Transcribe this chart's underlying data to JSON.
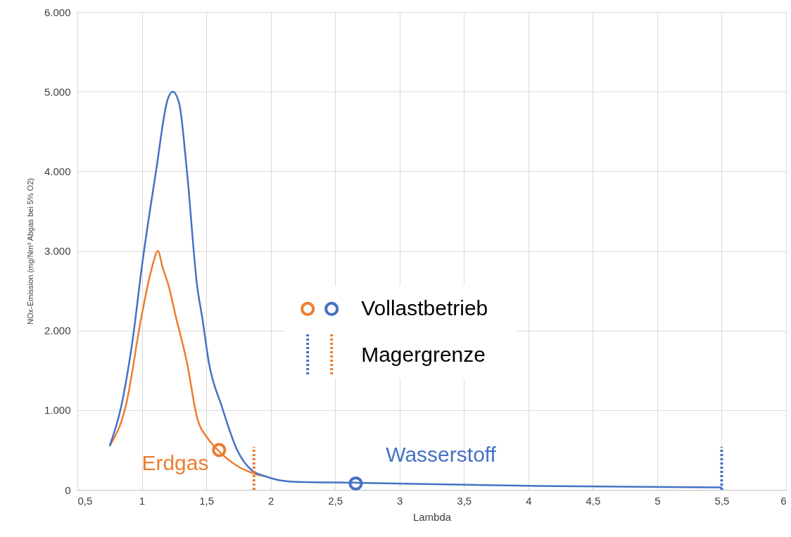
{
  "chart_data": {
    "type": "line",
    "xlabel": "Lambda",
    "ylabel": "NOx-Emission (mg/Nm³ Abgas bei 5% O2)",
    "xlim": [
      0.5,
      6
    ],
    "xticks": [
      {
        "value": 0.5,
        "label": "0,5"
      },
      1,
      {
        "value": 1.5,
        "label": "1,5"
      },
      2,
      {
        "value": 2.5,
        "label": "2,5"
      },
      3,
      {
        "value": 3.5,
        "label": "3,5"
      },
      4,
      {
        "value": 4.5,
        "label": "4,5"
      },
      5,
      {
        "value": 5.5,
        "label": "5,5"
      },
      6
    ],
    "ylim": [
      0,
      6000
    ],
    "yticks": [
      0,
      {
        "value": 1000,
        "label": "1.000"
      },
      {
        "value": 2000,
        "label": "2.000"
      },
      {
        "value": 3000,
        "label": "3.000"
      },
      {
        "value": 4000,
        "label": "4.000"
      },
      {
        "value": 5000,
        "label": "5.000"
      },
      {
        "value": 6000,
        "label": "6.000"
      }
    ],
    "grid": true,
    "legend": "center",
    "marker": "none",
    "line_style": "solid",
    "series": [
      {
        "name": "Erdgas",
        "color": "#ed7d31",
        "x": [
          0.75,
          0.875,
          1.0,
          1.08,
          1.125,
          1.16,
          1.21,
          1.26,
          1.35,
          1.43,
          1.51,
          1.59,
          1.74,
          1.86,
          1.95
        ],
        "values": [
          550,
          1050,
          2200,
          2800,
          3000,
          2800,
          2550,
          2200,
          1600,
          900,
          650,
          500,
          300,
          210,
          170
        ]
      },
      {
        "name": "Wasserstoff",
        "color": "#4472c4",
        "x": [
          0.75,
          0.84,
          0.93,
          1.0,
          1.11,
          1.2,
          1.24,
          1.29,
          1.35,
          1.43,
          1.47,
          1.52,
          1.62,
          1.74,
          1.85,
          1.96,
          2.07,
          2.22,
          2.65,
          4.0,
          5.5
        ],
        "values": [
          550,
          1050,
          1900,
          2800,
          4000,
          4900,
          5000,
          4850,
          4000,
          2550,
          2150,
          1600,
          1050,
          500,
          250,
          170,
          120,
          100,
          90,
          50,
          30
        ]
      },
      {
        "name": "Vollastbetrieb",
        "type": "scatter",
        "marker": "circle",
        "colors": [
          "#ed7d31",
          "#4472c4"
        ],
        "x": [
          1.6,
          2.66
        ],
        "values": [
          500,
          80
        ]
      }
    ],
    "ref_lines": [
      {
        "axis": "x",
        "value": 1.87,
        "label": "Magergrenze",
        "color": "#ed7d31",
        "line_style": "dotted"
      },
      {
        "axis": "x",
        "value": 5.5,
        "color": "#4472c4",
        "line_style": "dotted"
      }
    ]
  }
}
